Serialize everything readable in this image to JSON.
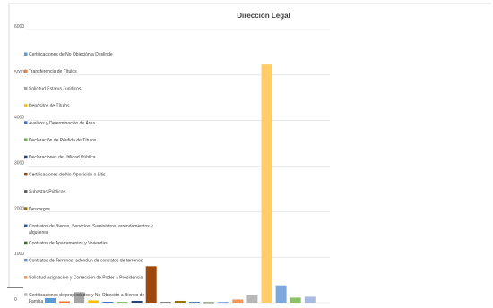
{
  "chart_data": {
    "type": "bar",
    "title": "Dirección Legal",
    "xlabel": "",
    "ylabel": "",
    "ylim": [
      0,
      6000
    ],
    "yticks": [
      0,
      1000,
      2000,
      3000,
      4000,
      5000,
      6000
    ],
    "grid": true,
    "legend_position": "left",
    "series": [
      {
        "name": "Certificaciones de No Objeción a Deslinde",
        "value": 100,
        "color": "#5b9bd5"
      },
      {
        "name": "Transferencia de Títulos",
        "value": 30,
        "color": "#ed7d31"
      },
      {
        "name": "Solicitud Estatus Jurídicos",
        "value": 230,
        "color": "#a5a5a5"
      },
      {
        "name": "Depósitos de Títulos",
        "value": 50,
        "color": "#ffc000"
      },
      {
        "name": "Avalúos y Determinación de Área",
        "value": 20,
        "color": "#4472c4"
      },
      {
        "name": "Declaración de Pérdida de Títulos",
        "value": 15,
        "color": "#70ad47"
      },
      {
        "name": "Declaraciones de Utilidad Pública",
        "value": 40,
        "color": "#264478"
      },
      {
        "name": "Certificaciones de No Oposición o Litis",
        "value": 800,
        "color": "#9e480e"
      },
      {
        "name": "Subastas Públicas",
        "value": 15,
        "color": "#636363"
      },
      {
        "name": "Descargos",
        "value": 40,
        "color": "#997300"
      },
      {
        "name": "Contratos de Bienes, Servicios, Suministros, arrendamientos y alquileres",
        "value": 15,
        "color": "#255e91"
      },
      {
        "name": "Contratos de Apartamentos y Viviendas",
        "value": 10,
        "color": "#43682b"
      },
      {
        "name": "Contratos de Terrenos, adendun de contratos de terrenos",
        "value": 15,
        "color": "#698ed0"
      },
      {
        "name": "Solicitud Asignación y Corrección de Poder a Presidencia",
        "value": 70,
        "color": "#f1975a"
      },
      {
        "name": "Certificaciones de propiedades y No Objeción a Bienes de Familia",
        "value": 160,
        "color": "#b7b7b7"
      },
      {
        "name": "",
        "value": 5230,
        "color": "#ffcd6a"
      },
      {
        "name": "",
        "value": 380,
        "color": "#7ca8dc"
      },
      {
        "name": "",
        "value": 110,
        "color": "#8cc168"
      },
      {
        "name": "",
        "value": 130,
        "color": "#a9bbe0"
      }
    ]
  }
}
